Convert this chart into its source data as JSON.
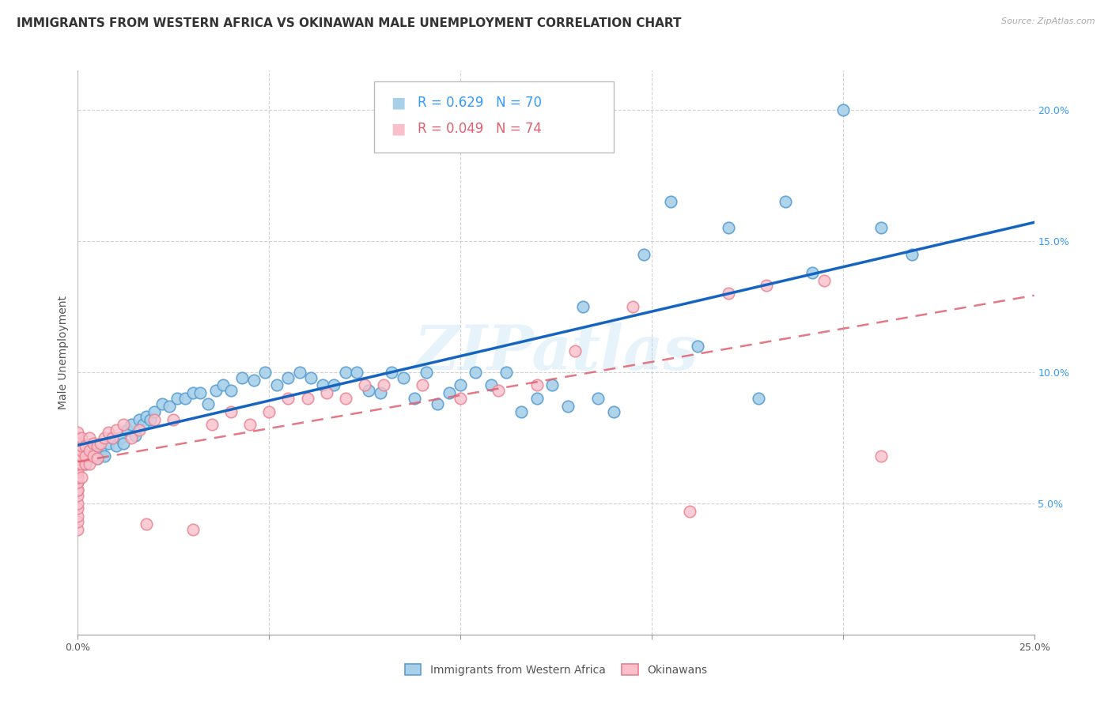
{
  "title": "IMMIGRANTS FROM WESTERN AFRICA VS OKINAWAN MALE UNEMPLOYMENT CORRELATION CHART",
  "source": "Source: ZipAtlas.com",
  "ylabel": "Male Unemployment",
  "watermark": "ZIPatlas",
  "xlim": [
    0.0,
    0.25
  ],
  "ylim": [
    0.0,
    0.215
  ],
  "xticks": [
    0.0,
    0.05,
    0.1,
    0.15,
    0.2,
    0.25
  ],
  "xticklabels": [
    "0.0%",
    "",
    "",
    "",
    "",
    "25.0%"
  ],
  "yticks_right": [
    0.05,
    0.1,
    0.15,
    0.2
  ],
  "ytick_labels_right": [
    "5.0%",
    "10.0%",
    "15.0%",
    "20.0%"
  ],
  "series1_label": "Immigrants from Western Africa",
  "series1_R": "0.629",
  "series1_N": "70",
  "series1_color": "#a8d0e8",
  "series1_edge_color": "#5a9fd4",
  "series1_line_color": "#1565c0",
  "series2_label": "Okinawans",
  "series2_R": "0.049",
  "series2_N": "74",
  "series2_color": "#f9c0cb",
  "series2_edge_color": "#e8808e",
  "series2_line_color": "#e06070",
  "background_color": "#ffffff",
  "grid_color": "#cccccc",
  "title_fontsize": 11,
  "axis_label_fontsize": 10,
  "tick_fontsize": 9,
  "legend_fontsize": 12,
  "series1_x": [
    0.001,
    0.002,
    0.003,
    0.004,
    0.005,
    0.006,
    0.007,
    0.008,
    0.009,
    0.01,
    0.011,
    0.012,
    0.013,
    0.014,
    0.015,
    0.016,
    0.017,
    0.018,
    0.019,
    0.02,
    0.022,
    0.024,
    0.026,
    0.028,
    0.03,
    0.032,
    0.034,
    0.036,
    0.038,
    0.04,
    0.043,
    0.046,
    0.049,
    0.052,
    0.055,
    0.058,
    0.061,
    0.064,
    0.067,
    0.07,
    0.073,
    0.076,
    0.079,
    0.082,
    0.085,
    0.088,
    0.091,
    0.094,
    0.097,
    0.1,
    0.104,
    0.108,
    0.112,
    0.116,
    0.12,
    0.124,
    0.128,
    0.132,
    0.136,
    0.14,
    0.148,
    0.155,
    0.162,
    0.17,
    0.178,
    0.185,
    0.192,
    0.2,
    0.21,
    0.218
  ],
  "series1_y": [
    0.068,
    0.065,
    0.07,
    0.072,
    0.067,
    0.07,
    0.068,
    0.073,
    0.075,
    0.072,
    0.075,
    0.073,
    0.078,
    0.08,
    0.076,
    0.082,
    0.08,
    0.083,
    0.082,
    0.085,
    0.088,
    0.087,
    0.09,
    0.09,
    0.092,
    0.092,
    0.088,
    0.093,
    0.095,
    0.093,
    0.098,
    0.097,
    0.1,
    0.095,
    0.098,
    0.1,
    0.098,
    0.095,
    0.095,
    0.1,
    0.1,
    0.093,
    0.092,
    0.1,
    0.098,
    0.09,
    0.1,
    0.088,
    0.092,
    0.095,
    0.1,
    0.095,
    0.1,
    0.085,
    0.09,
    0.095,
    0.087,
    0.125,
    0.09,
    0.085,
    0.145,
    0.165,
    0.11,
    0.155,
    0.09,
    0.165,
    0.138,
    0.2,
    0.155,
    0.145
  ],
  "series2_x": [
    0.0,
    0.0,
    0.0,
    0.0,
    0.0,
    0.0,
    0.0,
    0.0,
    0.0,
    0.0,
    0.0,
    0.0,
    0.0,
    0.0,
    0.0,
    0.0,
    0.0,
    0.0,
    0.0,
    0.0,
    0.0,
    0.0,
    0.0,
    0.0,
    0.0,
    0.001,
    0.001,
    0.001,
    0.001,
    0.001,
    0.001,
    0.002,
    0.002,
    0.002,
    0.003,
    0.003,
    0.003,
    0.004,
    0.004,
    0.005,
    0.005,
    0.006,
    0.007,
    0.008,
    0.009,
    0.01,
    0.012,
    0.014,
    0.016,
    0.018,
    0.02,
    0.025,
    0.03,
    0.035,
    0.04,
    0.045,
    0.05,
    0.055,
    0.06,
    0.065,
    0.07,
    0.075,
    0.08,
    0.09,
    0.1,
    0.11,
    0.12,
    0.13,
    0.145,
    0.16,
    0.17,
    0.18,
    0.195,
    0.21
  ],
  "series2_y": [
    0.04,
    0.043,
    0.045,
    0.048,
    0.05,
    0.053,
    0.055,
    0.055,
    0.058,
    0.058,
    0.06,
    0.06,
    0.062,
    0.063,
    0.065,
    0.065,
    0.067,
    0.068,
    0.068,
    0.07,
    0.07,
    0.072,
    0.073,
    0.075,
    0.077,
    0.06,
    0.065,
    0.068,
    0.07,
    0.072,
    0.075,
    0.065,
    0.068,
    0.072,
    0.065,
    0.07,
    0.075,
    0.068,
    0.073,
    0.067,
    0.072,
    0.073,
    0.075,
    0.077,
    0.075,
    0.078,
    0.08,
    0.075,
    0.078,
    0.042,
    0.082,
    0.082,
    0.04,
    0.08,
    0.085,
    0.08,
    0.085,
    0.09,
    0.09,
    0.092,
    0.09,
    0.095,
    0.095,
    0.095,
    0.09,
    0.093,
    0.095,
    0.108,
    0.125,
    0.047,
    0.13,
    0.133,
    0.135,
    0.068
  ],
  "series1_trend": [
    0.062,
    0.163
  ],
  "series2_trend": [
    0.065,
    0.115
  ]
}
